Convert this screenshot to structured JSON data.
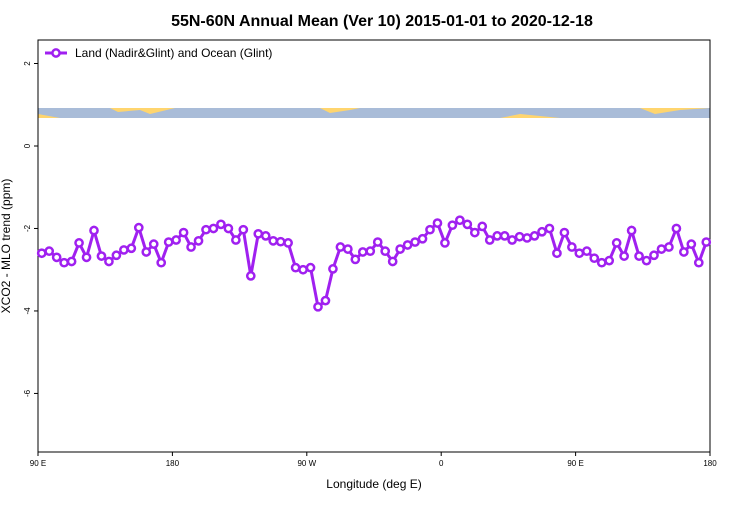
{
  "chart_data": {
    "type": "line",
    "title": "55N-60N Annual Mean (Ver 10)   2015-01-01 to 2020-12-18",
    "x_label": "Longitude (deg E)",
    "y_label": "XCO2 - MLO trend (ppm)",
    "x": [
      92.5,
      97.5,
      102.5,
      107.5,
      112.5,
      117.5,
      122.5,
      127.5,
      132.5,
      137.5,
      142.5,
      147.5,
      152.5,
      157.5,
      162.5,
      167.5,
      172.5,
      177.5,
      182.5,
      187.5,
      192.5,
      197.5,
      202.5,
      207.5,
      212.5,
      217.5,
      222.5,
      227.5,
      232.5,
      237.5,
      242.5,
      247.5,
      252.5,
      257.5,
      262.5,
      267.5,
      272.5,
      277.5,
      282.5,
      287.5,
      292.5,
      297.5,
      302.5,
      307.5,
      312.5,
      317.5,
      322.5,
      327.5,
      332.5,
      337.5,
      342.5,
      347.5,
      352.5,
      357.5,
      362.5,
      367.5,
      372.5,
      377.5,
      382.5,
      387.5,
      392.5,
      397.5,
      402.5,
      407.5,
      412.5,
      417.5,
      422.5,
      427.5,
      432.5,
      437.5,
      442.5,
      447.5,
      452.5,
      457.5,
      462.5,
      467.5,
      472.5,
      477.5,
      482.5,
      487.5,
      492.5,
      497.5,
      502.5,
      507.5,
      512.5,
      517.5,
      522.5,
      527.5,
      532.5,
      537.5
    ],
    "series": [
      {
        "name": "Land (Nadir&Glint) and Ocean (Glint)",
        "color": "#a020f0",
        "values": [
          -2.6,
          -2.55,
          -2.7,
          -2.83,
          -2.8,
          -2.35,
          -2.7,
          -2.05,
          -2.67,
          -2.8,
          -2.65,
          -2.52,
          -2.48,
          -1.98,
          -2.57,
          -2.38,
          -2.83,
          -2.33,
          -2.28,
          -2.1,
          -2.45,
          -2.3,
          -2.03,
          -2.0,
          -1.9,
          -2.0,
          -2.28,
          -2.03,
          -3.15,
          -2.13,
          -2.18,
          -2.3,
          -2.32,
          -2.35,
          -2.95,
          -3.0,
          -2.95,
          -3.9,
          -3.75,
          -2.98,
          -2.45,
          -2.5,
          -2.75,
          -2.57,
          -2.55,
          -2.33,
          -2.55,
          -2.8,
          -2.5,
          -2.4,
          -2.33,
          -2.25,
          -2.03,
          -1.87,
          -2.35,
          -1.92,
          -1.8,
          -1.9,
          -2.1,
          -1.95,
          -2.28,
          -2.18,
          -2.18,
          -2.28,
          -2.2,
          -2.23,
          -2.18,
          -2.08,
          -2.0,
          -2.6,
          -2.1,
          -2.45,
          -2.6,
          -2.55,
          -2.72,
          -2.83,
          -2.78,
          -2.35,
          -2.67,
          -2.05,
          -2.67,
          -2.78,
          -2.65,
          -2.5,
          -2.45,
          -2.0,
          -2.57,
          -2.38,
          -2.83,
          -2.33
        ]
      }
    ],
    "xlim": [
      90,
      540
    ],
    "xticks": [
      {
        "value": 90,
        "label": "90 E"
      },
      180,
      {
        "value": 270,
        "label": "90 W"
      },
      {
        "value": 360,
        "label": "0"
      },
      {
        "value": 450,
        "label": "90 E"
      },
      {
        "value": 540,
        "label": "180"
      }
    ],
    "ylim": [
      -7.42,
      2.57
    ],
    "yticks": [
      2,
      0,
      -2,
      -4,
      -6
    ],
    "legend": "top-left"
  }
}
